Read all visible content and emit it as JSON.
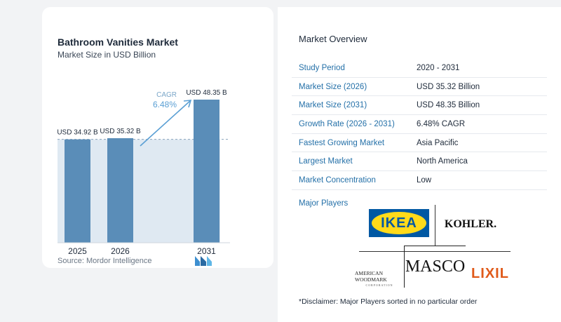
{
  "chart": {
    "title": "Bathroom Vanities Market",
    "subtitle": "Market Size in USD Billion",
    "source": "Source: Mordor Intelligence",
    "cagr_label": "CAGR",
    "cagr_value": "6.48%"
  },
  "chart_data": {
    "type": "bar",
    "categories": [
      "2025",
      "2026",
      "2031"
    ],
    "values": [
      34.92,
      35.32,
      48.35
    ],
    "data_labels": [
      "USD 34.92 B",
      "USD 35.32 B",
      "USD 48.35 B"
    ],
    "title": "Bathroom Vanities Market",
    "subtitle": "Market Size in USD Billion",
    "ylim": [
      0,
      48.35
    ],
    "colors": [
      "#5a8db8",
      "#5a8db8",
      "#5a8db8"
    ],
    "grid": false
  },
  "overview": {
    "title": "Market Overview",
    "rows": [
      {
        "label": "Study Period",
        "value": "2020 - 2031"
      },
      {
        "label": "Market Size (2026)",
        "value": "USD 35.32 Billion"
      },
      {
        "label": "Market Size (2031)",
        "value": "USD 48.35 Billion"
      },
      {
        "label": "Growth Rate (2026 - 2031)",
        "value": "6.48% CAGR"
      },
      {
        "label": "Fastest Growing Market",
        "value": "Asia Pacific"
      },
      {
        "label": "Largest Market",
        "value": "North America"
      },
      {
        "label": "Market Concentration",
        "value": "Low"
      }
    ],
    "players_label": "Major Players",
    "players": {
      "ikea": "IKEA",
      "kohler": "KOHLER.",
      "american_woodmark": "AMERICAN WOODMARK",
      "american_woodmark_sub": "CORPORATION",
      "masco": "MASCO",
      "lixil": "LIXIL"
    },
    "disclaimer": "*Disclaimer: Major Players sorted in no particular order"
  },
  "colors": {
    "bar": "#5a8db8",
    "shade": "#dfe9f2",
    "label_blue": "#2470a8",
    "cagr": "#5a9fd4"
  }
}
